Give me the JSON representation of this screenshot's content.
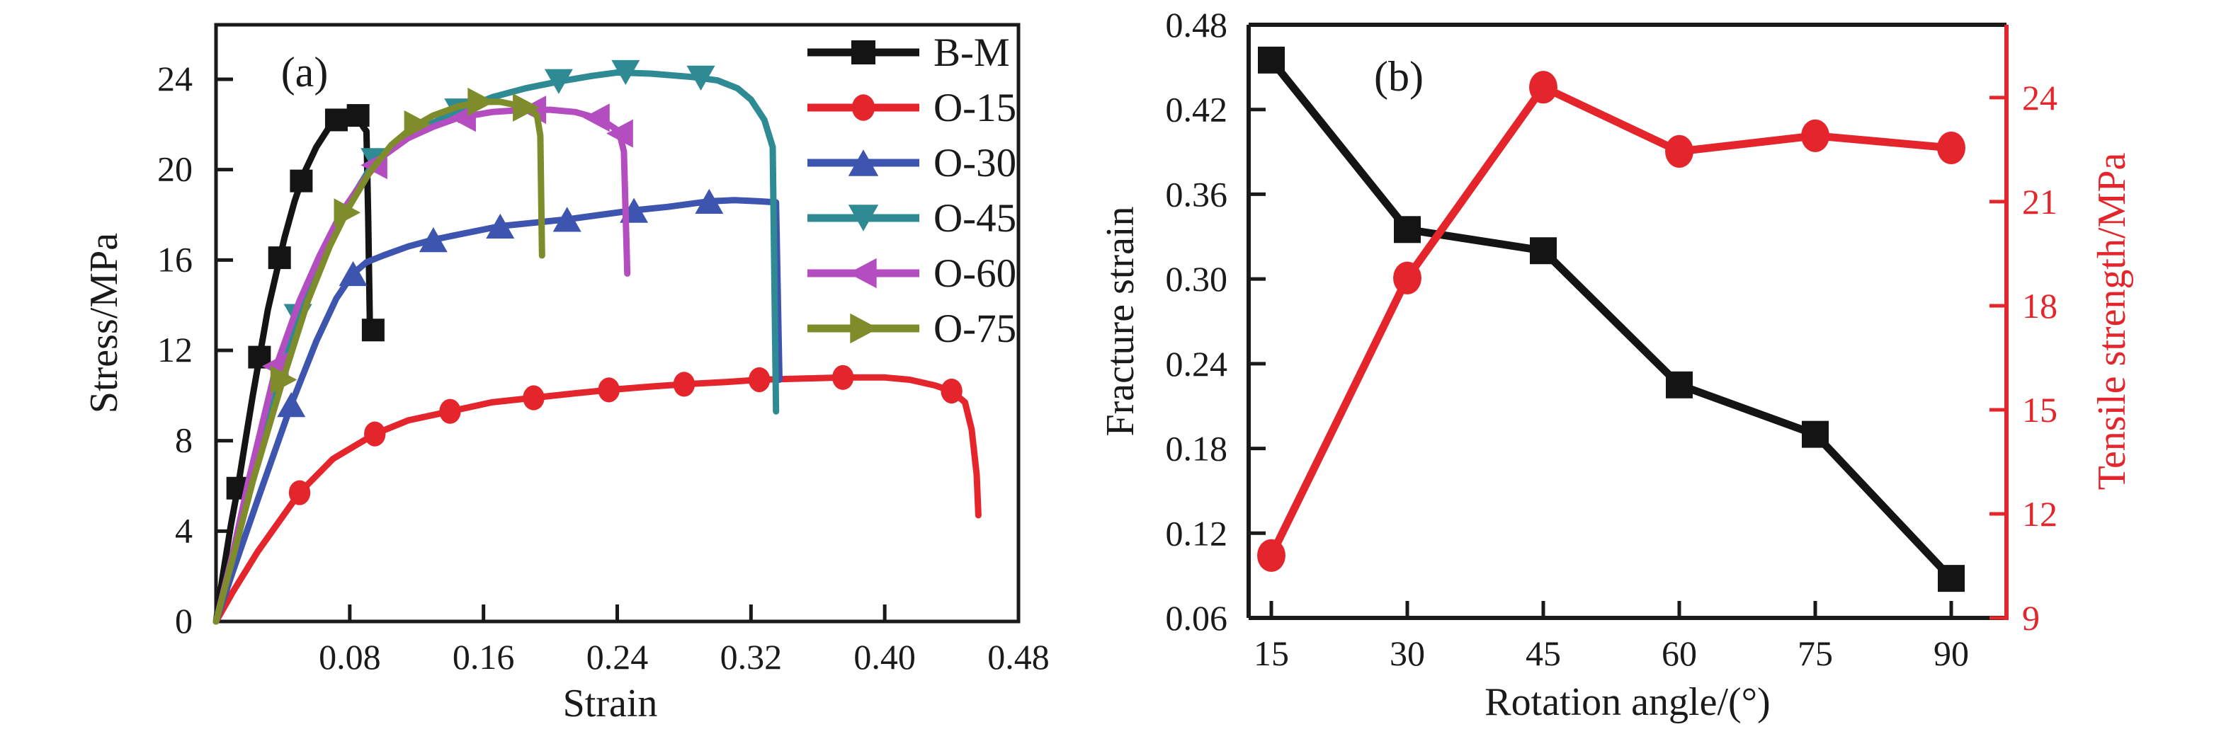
{
  "figure": {
    "background": "#ffffff",
    "text_color": "#1a1a1a",
    "accent_red": "#e4252b"
  },
  "chart_data": [
    {
      "id": "a",
      "type": "line",
      "panel_label": "(a)",
      "xlabel": "Strain",
      "ylabel": "Stress/MPa",
      "xlim": [
        0,
        0.48
      ],
      "ylim": [
        0,
        26.4
      ],
      "x_ticks": [
        0.08,
        0.16,
        0.24,
        0.32,
        0.4,
        0.48
      ],
      "y_ticks": [
        0,
        4,
        8,
        12,
        16,
        20,
        24
      ],
      "grid": false,
      "legend_position": "top-right-inside",
      "legend": [
        {
          "label": "B-M",
          "color": "#141414",
          "marker": "square"
        },
        {
          "label": "O-15",
          "color": "#e4252b",
          "marker": "circle"
        },
        {
          "label": "O-30",
          "color": "#3d55af",
          "marker": "tri-up"
        },
        {
          "label": "O-45",
          "color": "#2e8b94",
          "marker": "tri-down"
        },
        {
          "label": "O-60",
          "color": "#b44ec0",
          "marker": "tri-left"
        },
        {
          "label": "O-75",
          "color": "#7e8c2b",
          "marker": "tri-right"
        }
      ],
      "series": [
        {
          "name": "B-M",
          "color": "#141414",
          "marker": "square",
          "points": [
            [
              0,
              0
            ],
            [
              0.004,
              2.0
            ],
            [
              0.009,
              4.3
            ],
            [
              0.013,
              5.9
            ],
            [
              0.018,
              8.2
            ],
            [
              0.022,
              10.0
            ],
            [
              0.026,
              11.7
            ],
            [
              0.031,
              13.8
            ],
            [
              0.036,
              15.4
            ],
            [
              0.041,
              17.0
            ],
            [
              0.047,
              18.6
            ],
            [
              0.053,
              19.9
            ],
            [
              0.06,
              21.0
            ],
            [
              0.067,
              21.8
            ],
            [
              0.073,
              22.2
            ],
            [
              0.079,
              22.45
            ],
            [
              0.084,
              22.4
            ],
            [
              0.088,
              21.9
            ],
            [
              0.09,
              21.7
            ],
            [
              0.091,
              18.0
            ],
            [
              0.092,
              13.2
            ],
            [
              0.095,
              12.9
            ]
          ],
          "marker_points": [
            [
              0.013,
              5.9
            ],
            [
              0.026,
              11.7
            ],
            [
              0.038,
              16.1
            ],
            [
              0.051,
              19.5
            ],
            [
              0.072,
              22.2
            ],
            [
              0.085,
              22.4
            ],
            [
              0.094,
              12.9
            ]
          ]
        },
        {
          "name": "O-15",
          "color": "#e4252b",
          "marker": "circle",
          "points": [
            [
              0,
              0
            ],
            [
              0.01,
              1.3
            ],
            [
              0.025,
              3.1
            ],
            [
              0.05,
              5.7
            ],
            [
              0.07,
              7.2
            ],
            [
              0.095,
              8.3
            ],
            [
              0.115,
              8.9
            ],
            [
              0.14,
              9.3
            ],
            [
              0.165,
              9.7
            ],
            [
              0.19,
              9.9
            ],
            [
              0.215,
              10.1
            ],
            [
              0.235,
              10.25
            ],
            [
              0.26,
              10.4
            ],
            [
              0.28,
              10.5
            ],
            [
              0.305,
              10.6
            ],
            [
              0.325,
              10.7
            ],
            [
              0.35,
              10.75
            ],
            [
              0.375,
              10.8
            ],
            [
              0.4,
              10.8
            ],
            [
              0.415,
              10.7
            ],
            [
              0.43,
              10.45
            ],
            [
              0.44,
              10.2
            ],
            [
              0.448,
              9.7
            ],
            [
              0.452,
              8.5
            ],
            [
              0.455,
              6.5
            ],
            [
              0.456,
              4.7
            ]
          ],
          "marker_points": [
            [
              0.05,
              5.7
            ],
            [
              0.095,
              8.3
            ],
            [
              0.14,
              9.3
            ],
            [
              0.19,
              9.9
            ],
            [
              0.235,
              10.25
            ],
            [
              0.28,
              10.5
            ],
            [
              0.325,
              10.7
            ],
            [
              0.375,
              10.8
            ],
            [
              0.44,
              10.2
            ]
          ]
        },
        {
          "name": "O-30",
          "color": "#3d55af",
          "marker": "tri-up",
          "points": [
            [
              0,
              0
            ],
            [
              0.01,
              2.2
            ],
            [
              0.025,
              5.4
            ],
            [
              0.045,
              9.6
            ],
            [
              0.06,
              12.4
            ],
            [
              0.072,
              14.3
            ],
            [
              0.082,
              15.4
            ],
            [
              0.09,
              15.9
            ],
            [
              0.1,
              16.2
            ],
            [
              0.115,
              16.6
            ],
            [
              0.13,
              16.9
            ],
            [
              0.15,
              17.2
            ],
            [
              0.17,
              17.5
            ],
            [
              0.19,
              17.65
            ],
            [
              0.21,
              17.8
            ],
            [
              0.23,
              18.0
            ],
            [
              0.25,
              18.2
            ],
            [
              0.27,
              18.35
            ],
            [
              0.295,
              18.6
            ],
            [
              0.31,
              18.65
            ],
            [
              0.325,
              18.6
            ],
            [
              0.335,
              18.55
            ],
            [
              0.337,
              10.7
            ]
          ],
          "marker_points": [
            [
              0.045,
              9.6
            ],
            [
              0.082,
              15.4
            ],
            [
              0.13,
              16.9
            ],
            [
              0.17,
              17.5
            ],
            [
              0.21,
              17.8
            ],
            [
              0.25,
              18.2
            ],
            [
              0.295,
              18.6
            ]
          ]
        },
        {
          "name": "O-45",
          "color": "#2e8b94",
          "marker": "tri-down",
          "points": [
            [
              0,
              0
            ],
            [
              0.012,
              3.5
            ],
            [
              0.028,
              8.0
            ],
            [
              0.049,
              13.5
            ],
            [
              0.065,
              16.4
            ],
            [
              0.08,
              18.6
            ],
            [
              0.095,
              20.4
            ],
            [
              0.11,
              21.3
            ],
            [
              0.125,
              21.9
            ],
            [
              0.145,
              22.6
            ],
            [
              0.165,
              23.2
            ],
            [
              0.185,
              23.6
            ],
            [
              0.205,
              23.9
            ],
            [
              0.225,
              24.15
            ],
            [
              0.24,
              24.3
            ],
            [
              0.26,
              24.25
            ],
            [
              0.285,
              24.1
            ],
            [
              0.3,
              23.95
            ],
            [
              0.312,
              23.6
            ],
            [
              0.32,
              23.1
            ],
            [
              0.328,
              22.2
            ],
            [
              0.333,
              21.0
            ],
            [
              0.335,
              9.3
            ]
          ],
          "marker_points": [
            [
              0.049,
              13.5
            ],
            [
              0.095,
              20.4
            ],
            [
              0.145,
              22.6
            ],
            [
              0.205,
              23.9
            ],
            [
              0.245,
              24.3
            ],
            [
              0.29,
              24.05
            ]
          ]
        },
        {
          "name": "O-60",
          "color": "#b44ec0",
          "marker": "tri-left",
          "points": [
            [
              0,
              0
            ],
            [
              0.01,
              3.0
            ],
            [
              0.02,
              6.4
            ],
            [
              0.036,
              11.3
            ],
            [
              0.05,
              14.2
            ],
            [
              0.062,
              16.2
            ],
            [
              0.075,
              18.1
            ],
            [
              0.088,
              19.5
            ],
            [
              0.1,
              20.6
            ],
            [
              0.115,
              21.4
            ],
            [
              0.13,
              21.9
            ],
            [
              0.145,
              22.3
            ],
            [
              0.165,
              22.55
            ],
            [
              0.185,
              22.65
            ],
            [
              0.2,
              22.65
            ],
            [
              0.215,
              22.55
            ],
            [
              0.227,
              22.3
            ],
            [
              0.235,
              22.0
            ],
            [
              0.241,
              21.7
            ],
            [
              0.244,
              20.8
            ],
            [
              0.246,
              15.4
            ]
          ],
          "marker_points": [
            [
              0.036,
              11.3
            ],
            [
              0.095,
              20.2
            ],
            [
              0.148,
              22.3
            ],
            [
              0.19,
              22.65
            ],
            [
              0.228,
              22.3
            ],
            [
              0.242,
              21.6
            ]
          ]
        },
        {
          "name": "O-75",
          "color": "#7e8c2b",
          "marker": "tri-right",
          "points": [
            [
              0,
              0
            ],
            [
              0.01,
              2.8
            ],
            [
              0.022,
              6.2
            ],
            [
              0.04,
              10.7
            ],
            [
              0.055,
              14.2
            ],
            [
              0.068,
              16.6
            ],
            [
              0.08,
              18.4
            ],
            [
              0.092,
              19.9
            ],
            [
              0.105,
              21.1
            ],
            [
              0.118,
              21.9
            ],
            [
              0.13,
              22.4
            ],
            [
              0.145,
              22.8
            ],
            [
              0.158,
              23.0
            ],
            [
              0.17,
              23.0
            ],
            [
              0.18,
              22.85
            ],
            [
              0.188,
              22.65
            ],
            [
              0.192,
              22.4
            ],
            [
              0.194,
              21.5
            ],
            [
              0.195,
              16.2
            ]
          ],
          "marker_points": [
            [
              0.04,
              10.7
            ],
            [
              0.078,
              18.1
            ],
            [
              0.12,
              22.0
            ],
            [
              0.158,
              23.0
            ],
            [
              0.185,
              22.75
            ]
          ]
        }
      ]
    },
    {
      "id": "b",
      "type": "line",
      "panel_label": "(b)",
      "xlabel": "Rotation angle/(°)",
      "ylabel_left": "Fracture strain",
      "ylabel_right": "Tensile strength/MPa",
      "categories": [
        15,
        30,
        45,
        60,
        75,
        90
      ],
      "x_ticks": [
        15,
        30,
        45,
        60,
        75,
        90
      ],
      "ylim_left": [
        0.06,
        0.48
      ],
      "y_ticks_left": [
        0.06,
        0.12,
        0.18,
        0.24,
        0.3,
        0.36,
        0.42,
        0.48
      ],
      "ylim_right": [
        9,
        26.1
      ],
      "y_ticks_right": [
        9,
        12,
        15,
        18,
        21,
        24
      ],
      "grid": false,
      "series": [
        {
          "name": "Fracture strain",
          "axis": "left",
          "color": "#141414",
          "marker": "square",
          "values": [
            0.455,
            0.335,
            0.32,
            0.225,
            0.19,
            0.088
          ]
        },
        {
          "name": "Tensile strength",
          "axis": "right",
          "color": "#e4252b",
          "marker": "circle",
          "values": [
            10.8,
            18.8,
            24.3,
            22.45,
            22.9,
            22.55
          ]
        }
      ]
    }
  ]
}
